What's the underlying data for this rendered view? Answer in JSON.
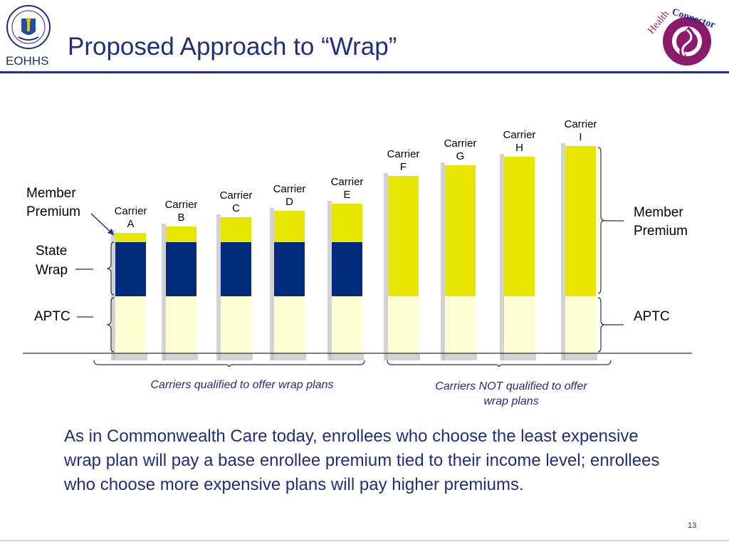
{
  "header": {
    "title": "Proposed Approach to “Wrap”",
    "agency_label": "EOHHS",
    "seal_name": "commonwealth-seal",
    "logo": {
      "word_health": "Health",
      "word_connector": "Connector"
    }
  },
  "colors": {
    "navy": "#1f2f7a",
    "member_premium": "#e6e600",
    "state_wrap": "#002a7a",
    "aptc": "#ffffd4",
    "logo_purple": "#8b1a6b"
  },
  "chart_data": {
    "type": "bar",
    "stacked": true,
    "categories": [
      "Carrier A",
      "Carrier B",
      "Carrier C",
      "Carrier D",
      "Carrier E",
      "Carrier F",
      "Carrier G",
      "Carrier H",
      "Carrier I"
    ],
    "series": [
      {
        "name": "APTC",
        "values": [
          80,
          80,
          80,
          80,
          80,
          80,
          80,
          80,
          80
        ]
      },
      {
        "name": "State Wrap",
        "values": [
          76,
          76,
          76,
          76,
          76,
          0,
          0,
          0,
          0
        ]
      },
      {
        "name": "Member Premium",
        "values": [
          13,
          22,
          35,
          44,
          54,
          169,
          184,
          196,
          211
        ]
      }
    ],
    "axis_labels_shown": false,
    "gridlines": false,
    "left_labels": [
      "Member Premium",
      "State Wrap",
      "APTC"
    ],
    "right_labels": [
      "Member Premium",
      "APTC"
    ],
    "carrier_labels": [
      [
        "Carrier",
        "A"
      ],
      [
        "Carrier",
        "B"
      ],
      [
        "Carrier",
        "C"
      ],
      [
        "Carrier",
        "D"
      ],
      [
        "Carrier",
        "E"
      ],
      [
        "Carrier",
        "F"
      ],
      [
        "Carrier",
        "G"
      ],
      [
        "Carrier",
        "H"
      ],
      [
        "Carrier",
        "I"
      ]
    ],
    "groups": [
      {
        "label": "Carriers qualified to offer wrap plans",
        "carriers": [
          "A",
          "B",
          "C",
          "D",
          "E"
        ]
      },
      {
        "label": "Carriers NOT qualified to offer wrap plans",
        "carriers": [
          "F",
          "G",
          "H",
          "I"
        ]
      }
    ]
  },
  "notes": {
    "qualified": "Carriers qualified to offer wrap plans",
    "not_qualified_line1": "Carriers NOT qualified to offer",
    "not_qualified_line2": "wrap plans"
  },
  "body_text": "As in Commonwealth Care today, enrollees who choose the least expensive wrap plan will pay a base enrollee premium tied to their income level; enrollees who choose more expensive plans will pay higher premiums.",
  "page_number": "13"
}
